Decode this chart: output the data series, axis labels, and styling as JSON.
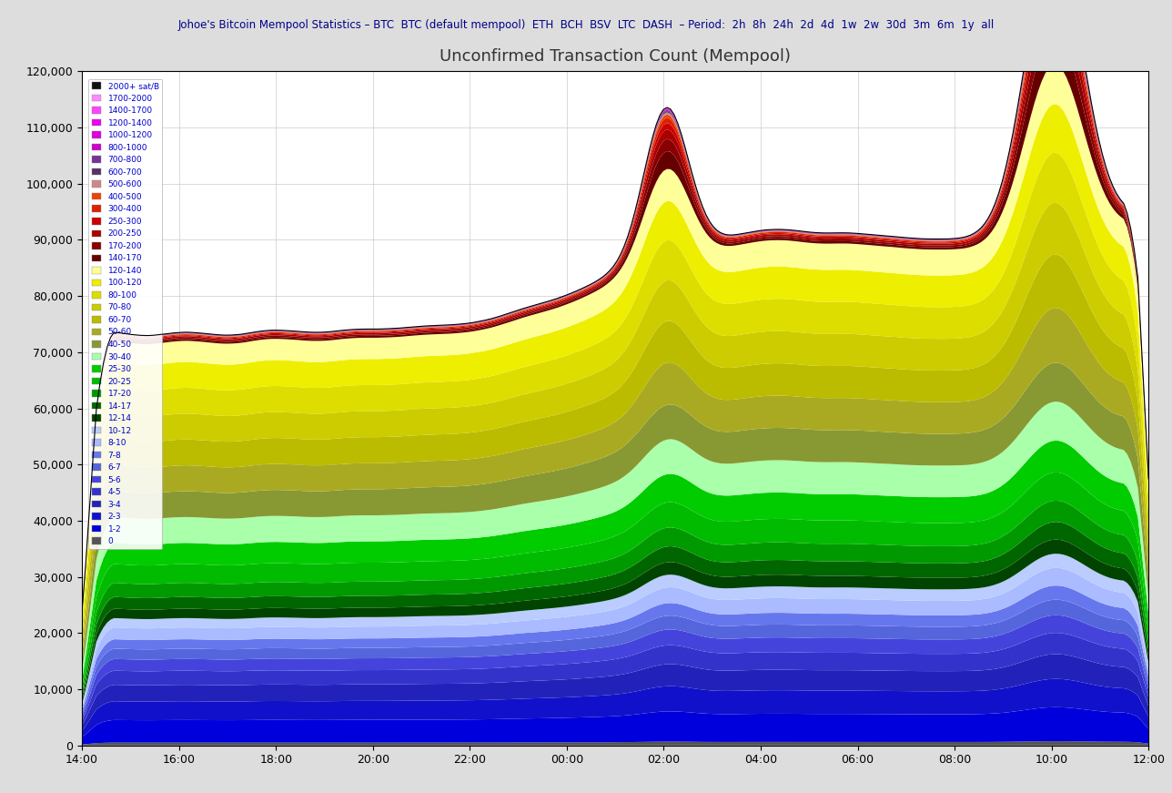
{
  "title": "Unconfirmed Transaction Count (Mempool)",
  "ylim": [
    0,
    120000
  ],
  "xtick_labels": [
    "14:00",
    "16:00",
    "18:00",
    "20:00",
    "22:00",
    "00:00",
    "02:00",
    "04:00",
    "06:00",
    "08:00",
    "10:00",
    "12:00"
  ],
  "ytick_values": [
    0,
    10000,
    20000,
    30000,
    40000,
    50000,
    60000,
    70000,
    80000,
    90000,
    100000,
    110000,
    120000
  ],
  "n_points": 300,
  "fee_bands": [
    {
      "label": "0",
      "color": "#555555"
    },
    {
      "label": "1-2",
      "color": "#0000dd"
    },
    {
      "label": "2-3",
      "color": "#1111cc"
    },
    {
      "label": "3-4",
      "color": "#2222bb"
    },
    {
      "label": "4-5",
      "color": "#3333cc"
    },
    {
      "label": "5-6",
      "color": "#4444dd"
    },
    {
      "label": "6-7",
      "color": "#5566dd"
    },
    {
      "label": "7-8",
      "color": "#6677ee"
    },
    {
      "label": "8-10",
      "color": "#aabbff"
    },
    {
      "label": "10-12",
      "color": "#bbccff"
    },
    {
      "label": "12-14",
      "color": "#004400"
    },
    {
      "label": "14-17",
      "color": "#006600"
    },
    {
      "label": "17-20",
      "color": "#009900"
    },
    {
      "label": "20-25",
      "color": "#00bb00"
    },
    {
      "label": "25-30",
      "color": "#00cc00"
    },
    {
      "label": "30-40",
      "color": "#aaffaa"
    },
    {
      "label": "40-50",
      "color": "#889933"
    },
    {
      "label": "50-60",
      "color": "#aaaa22"
    },
    {
      "label": "60-70",
      "color": "#bbbb00"
    },
    {
      "label": "70-80",
      "color": "#cccc00"
    },
    {
      "label": "80-100",
      "color": "#dddd00"
    },
    {
      "label": "100-120",
      "color": "#eeee00"
    },
    {
      "label": "120-140",
      "color": "#ffff99"
    },
    {
      "label": "140-170",
      "color": "#660000"
    },
    {
      "label": "170-200",
      "color": "#880000"
    },
    {
      "label": "200-250",
      "color": "#aa0000"
    },
    {
      "label": "250-300",
      "color": "#cc0000"
    },
    {
      "label": "300-400",
      "color": "#dd2200"
    },
    {
      "label": "400-500",
      "color": "#ee4400"
    },
    {
      "label": "500-600",
      "color": "#cc8888"
    },
    {
      "label": "600-700",
      "color": "#553366"
    },
    {
      "label": "700-800",
      "color": "#773399"
    },
    {
      "label": "800-1000",
      "color": "#cc00cc"
    },
    {
      "label": "1000-1200",
      "color": "#dd00dd"
    },
    {
      "label": "1200-1400",
      "color": "#ee00ee"
    },
    {
      "label": "1400-1700",
      "color": "#ff44ff"
    },
    {
      "label": "1700-2000",
      "color": "#ff88ff"
    },
    {
      "label": "2000+ sat/B",
      "color": "#111111"
    }
  ]
}
